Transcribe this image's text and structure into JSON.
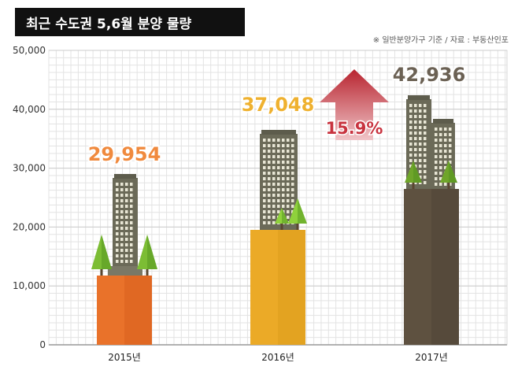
{
  "title": "최근 수도권 5,6월 분양 물량",
  "source_note": "※ 일반분양가구 기준 / 자료 : 부동산인포",
  "colors": {
    "bar_2015": "#e9722a",
    "bar_2016": "#ebaa27",
    "bar_2017": "#5e5140",
    "label_2015": "#f08a3e",
    "label_2016": "#efb12f",
    "label_2017": "#6b6154",
    "arrow": "#c8333f",
    "building": "#6b6a58",
    "tree": "#7cbd34"
  },
  "chart_data": {
    "type": "bar",
    "title": "최근 수도권 5,6월 분양 물량",
    "categories": [
      "2015년",
      "2016년",
      "2017년"
    ],
    "values": [
      29954,
      37048,
      42936
    ],
    "value_labels": [
      "29,954",
      "37,048",
      "42,936"
    ],
    "ylim": [
      0,
      50000
    ],
    "yticks": [
      0,
      10000,
      20000,
      30000,
      40000,
      50000
    ],
    "ytick_labels": [
      "0",
      "10,000",
      "20,000",
      "30,000",
      "40,000",
      "50,000"
    ],
    "grid": true,
    "annotation": "15.9%"
  }
}
